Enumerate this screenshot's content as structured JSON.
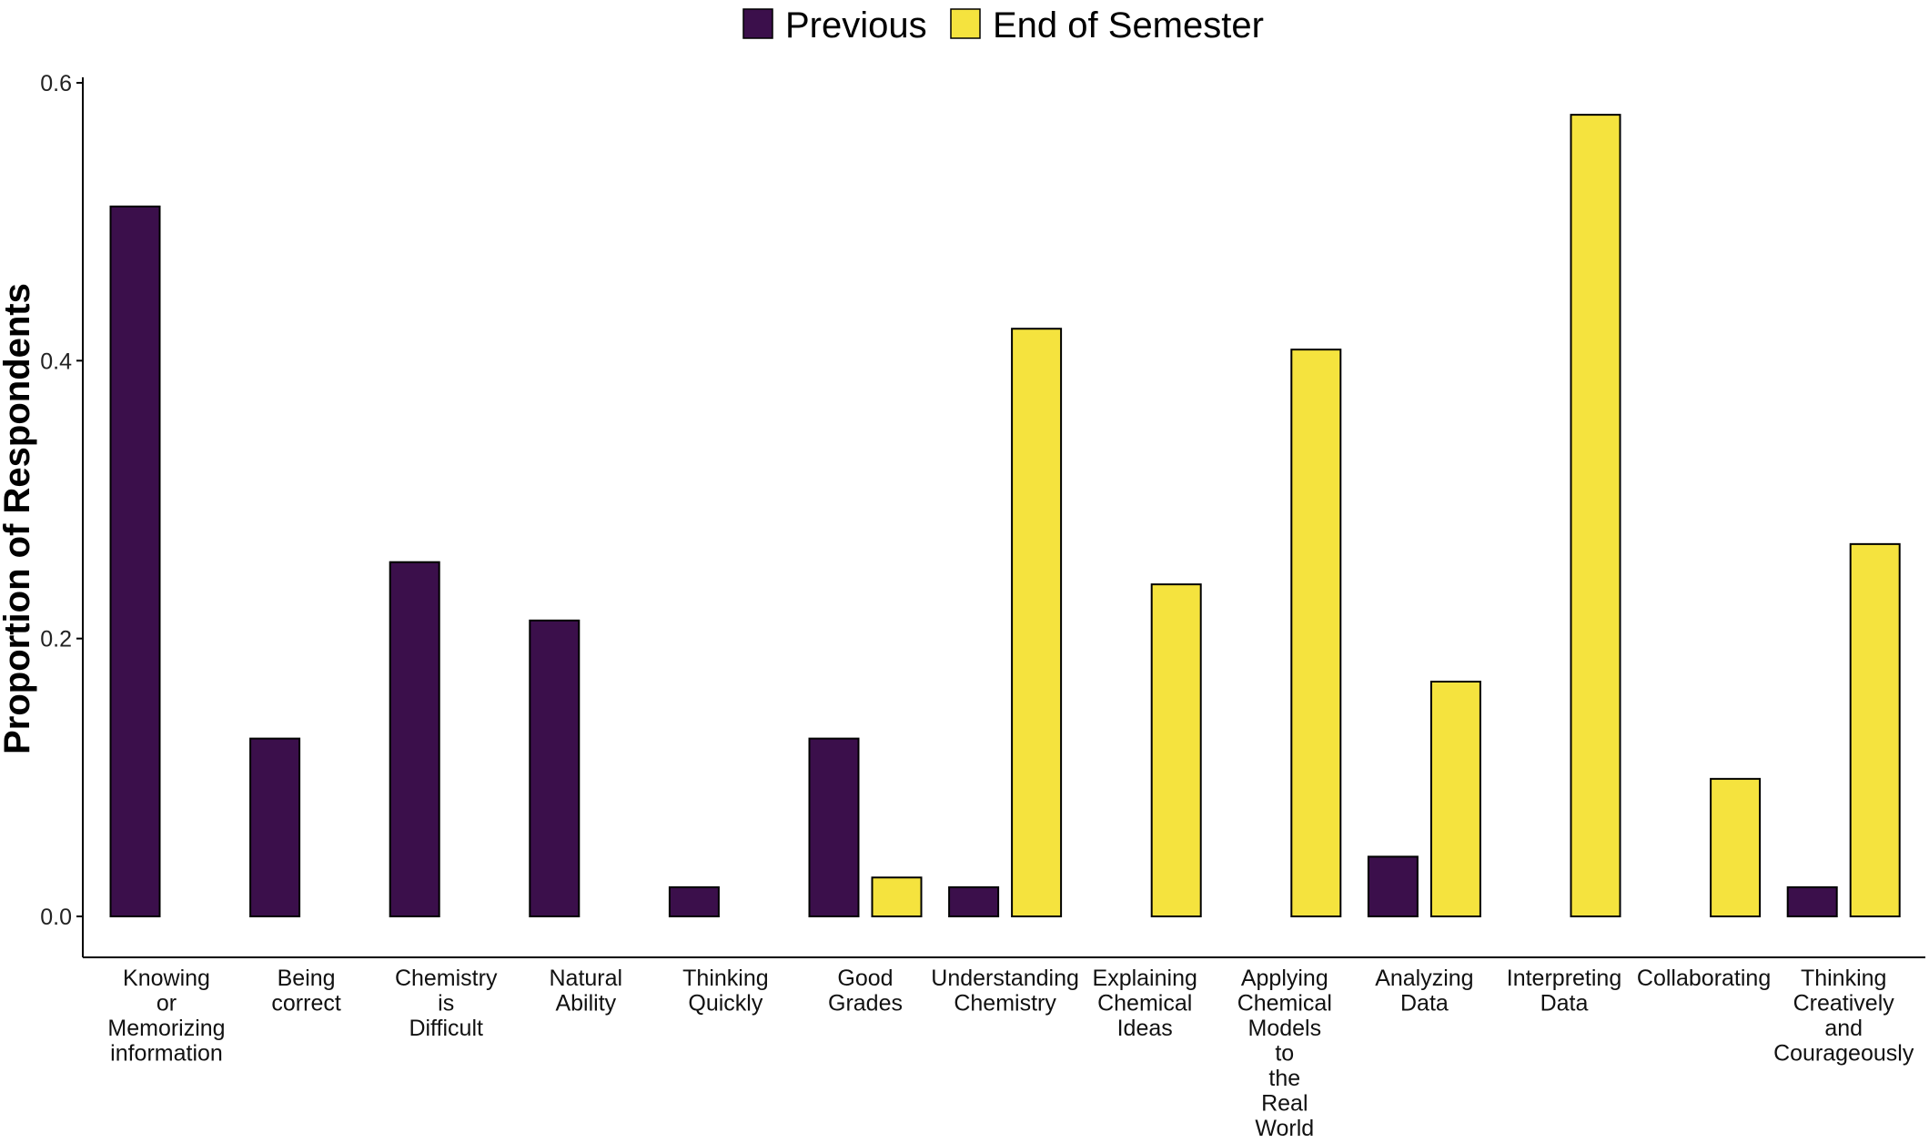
{
  "chart_data": {
    "type": "bar",
    "ylabel": "Proportion of Respondents",
    "xlabel": "",
    "ylim": [
      0,
      0.6
    ],
    "yticks": [
      0.0,
      0.2,
      0.4,
      0.6
    ],
    "ytick_labels": [
      "0.0",
      "0.2",
      "0.4",
      "0.6"
    ],
    "grid": false,
    "legend_position": "top-center",
    "categories": [
      "Knowing or Memorizing information",
      "Being correct",
      "Chemistry is Difficult",
      "Natural Ability",
      "Thinking Quickly",
      "Good Grades",
      "Understanding Chemistry",
      "Explaining Chemical Ideas",
      "Applying Chemical Models to the Real World",
      "Analyzing Data",
      "Interpreting Data",
      "Collaborating",
      "Thinking Creatively and Courageously"
    ],
    "category_label_lines": [
      [
        "Knowing",
        "or",
        "Memorizing",
        "information"
      ],
      [
        "Being",
        "correct"
      ],
      [
        "Chemistry",
        "is",
        "Difficult"
      ],
      [
        "Natural",
        "Ability"
      ],
      [
        "Thinking",
        "Quickly"
      ],
      [
        "Good",
        "Grades"
      ],
      [
        "Understanding",
        "Chemistry"
      ],
      [
        "Explaining",
        "Chemical",
        "Ideas"
      ],
      [
        "Applying",
        "Chemical",
        "Models",
        "to",
        "the",
        "Real",
        "World"
      ],
      [
        "Analyzing",
        "Data"
      ],
      [
        "Interpreting",
        "Data"
      ],
      [
        "Collaborating"
      ],
      [
        "Thinking",
        "Creatively",
        "and",
        "Courageously"
      ]
    ],
    "series": [
      {
        "name": "Previous",
        "color": "#3b0f4b",
        "values": [
          0.511,
          0.128,
          0.255,
          0.213,
          0.021,
          0.128,
          0.021,
          0.0,
          0.0,
          0.043,
          0.0,
          0.0,
          0.021
        ]
      },
      {
        "name": "End of Semester",
        "color": "#f5e33e",
        "values": [
          0.0,
          0.0,
          0.0,
          0.0,
          0.0,
          0.028,
          0.423,
          0.239,
          0.408,
          0.169,
          0.577,
          0.099,
          0.268
        ]
      }
    ]
  }
}
